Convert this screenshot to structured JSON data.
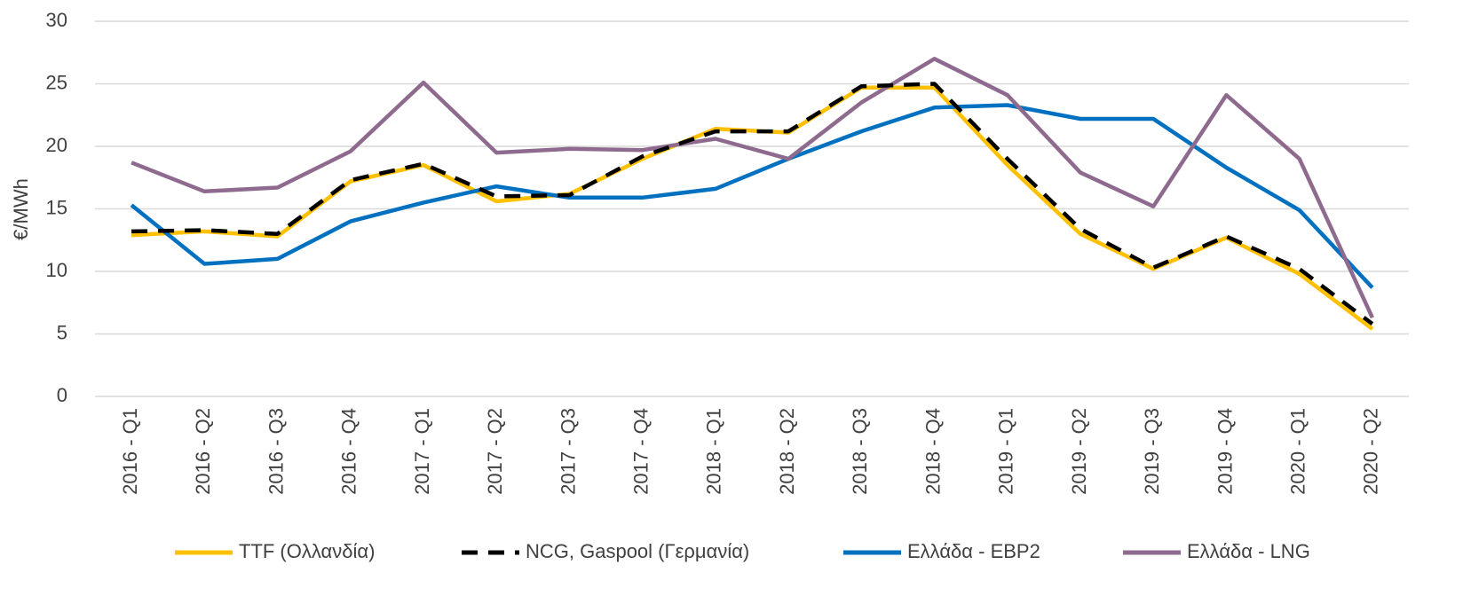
{
  "chart_data": {
    "type": "line",
    "y_label": "€/MWh",
    "categories": [
      "2016 - Q1",
      "2016 - Q2",
      "2016 - Q3",
      "2016 - Q4",
      "2017 - Q1",
      "2017 - Q2",
      "2017 - Q3",
      "2017 - Q4",
      "2018 - Q1",
      "2018 - Q2",
      "2018 - Q3",
      "2018 - Q4",
      "2019 - Q1",
      "2019 - Q2",
      "2019 - Q3",
      "2019 - Q4",
      "2020 - Q1",
      "2020 - Q2"
    ],
    "series": [
      {
        "name": "TTF (Ολλανδία)",
        "color": "#ffc000",
        "dashed": false,
        "values": [
          12.9,
          13.2,
          12.8,
          17.2,
          18.5,
          15.6,
          16.2,
          19.0,
          21.4,
          21.1,
          24.7,
          24.7,
          18.5,
          13.0,
          10.2,
          12.7,
          9.8,
          5.4
        ]
      },
      {
        "name": "NCG, Gaspool (Γερμανία)",
        "color": "#000000",
        "dashed": true,
        "values": [
          13.2,
          13.3,
          13.0,
          17.3,
          18.6,
          16.0,
          16.1,
          19.2,
          21.2,
          21.2,
          24.8,
          25.0,
          19.0,
          13.4,
          10.3,
          12.8,
          10.2,
          5.8
        ]
      },
      {
        "name": "Ελλάδα - EBP2",
        "color": "#0070c0",
        "dashed": false,
        "values": [
          15.3,
          10.6,
          11.0,
          14.0,
          15.5,
          16.8,
          15.9,
          15.9,
          16.6,
          19.0,
          21.2,
          23.1,
          23.3,
          22.2,
          22.2,
          18.3,
          14.9,
          8.7
        ]
      },
      {
        "name": "Ελλάδα - LNG",
        "color": "#8e6b8e",
        "dashed": false,
        "values": [
          18.7,
          16.4,
          16.7,
          19.6,
          25.1,
          19.5,
          19.8,
          19.7,
          20.6,
          19.0,
          23.5,
          27.0,
          24.1,
          17.9,
          15.2,
          24.1,
          19.0,
          6.3
        ]
      }
    ],
    "ylim": [
      0,
      30
    ],
    "yticks": [
      0,
      5,
      10,
      15,
      20,
      25,
      30
    ],
    "grid": true,
    "legend": "bottom"
  }
}
